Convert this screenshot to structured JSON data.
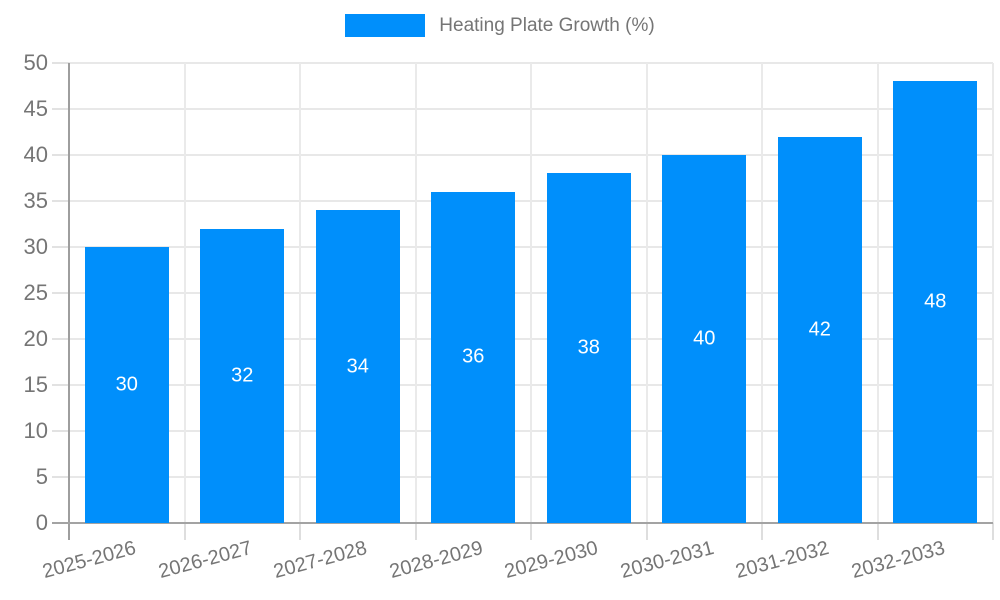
{
  "legend": {
    "label": "Heating Plate Growth (%)",
    "swatch_color": "#008FFB"
  },
  "chart_data": {
    "type": "bar",
    "title": "Heating Plate Growth (%)",
    "categories": [
      "2025-2026",
      "2026-2027",
      "2027-2028",
      "2028-2029",
      "2029-2030",
      "2030-2031",
      "2031-2032",
      "2032-2033"
    ],
    "series": [
      {
        "name": "Heating Plate Growth (%)",
        "values": [
          30,
          32,
          34,
          36,
          38,
          40,
          42,
          48
        ]
      }
    ],
    "data_labels": [
      "30",
      "32",
      "34",
      "36",
      "38",
      "40",
      "42",
      "48"
    ],
    "xlabel": "",
    "ylabel": "",
    "ylim": [
      0,
      50
    ],
    "yticks": [
      0,
      5,
      10,
      15,
      20,
      25,
      30,
      35,
      40,
      45,
      50
    ],
    "grid": true,
    "legend_position": "top",
    "x_label_rotation_deg": -15,
    "colors": {
      "bar": "#008FFB",
      "grid": "#e8e8e8",
      "axis": "#9e9e9e",
      "tick_label": "#757575",
      "data_label": "#ffffff"
    }
  }
}
